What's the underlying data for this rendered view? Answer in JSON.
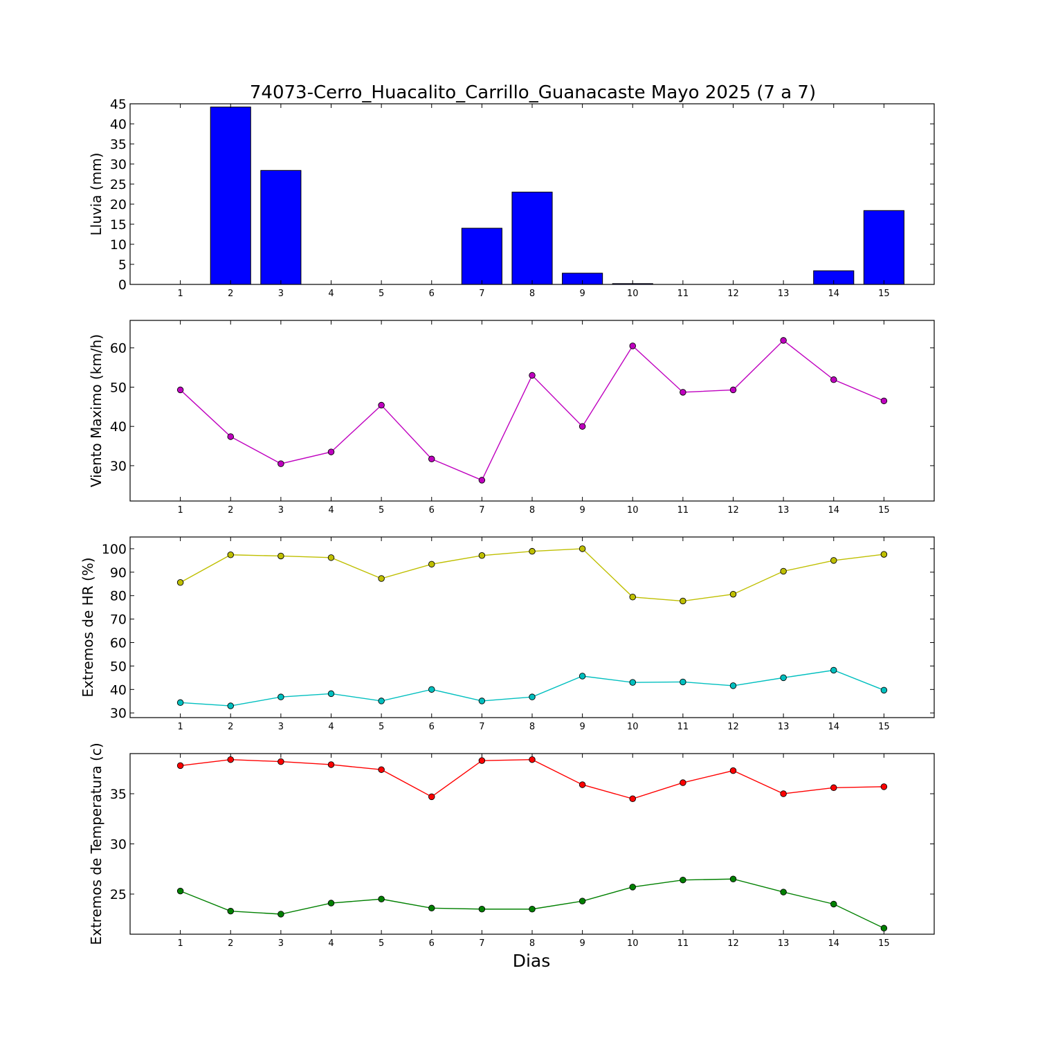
{
  "figure": {
    "title": "74073-Cerro_Huacalito_Carrillo_Guanacaste Mayo 2025  (7 a 7)",
    "xlabel": "Dias"
  },
  "chart_data": [
    {
      "type": "bar",
      "ylabel": "Lluvia (mm)",
      "categories": [
        "1",
        "2",
        "3",
        "4",
        "5",
        "6",
        "7",
        "8",
        "9",
        "10",
        "11",
        "12",
        "13",
        "14",
        "15"
      ],
      "values": [
        0,
        44.2,
        28.4,
        0,
        0,
        0,
        14.0,
        23.0,
        2.8,
        0.2,
        0,
        0,
        0,
        3.4,
        18.4
      ],
      "ylim": [
        0,
        45
      ],
      "yticks": [
        0,
        5,
        10,
        15,
        20,
        25,
        30,
        35,
        40,
        45
      ],
      "color": "#0000ff"
    },
    {
      "type": "line",
      "ylabel": "Viento Maximo (km/h)",
      "categories": [
        "1",
        "2",
        "3",
        "4",
        "5",
        "6",
        "7",
        "8",
        "9",
        "10",
        "11",
        "12",
        "13",
        "14",
        "15"
      ],
      "series": [
        {
          "values": [
            49.3,
            37.4,
            30.5,
            33.5,
            45.4,
            31.7,
            26.3,
            53.0,
            40.0,
            60.5,
            48.7,
            49.3,
            61.9,
            51.9,
            46.5
          ],
          "color": "#bf00bf"
        }
      ],
      "ylim": [
        21,
        67
      ],
      "yticks": [
        30,
        40,
        50,
        60
      ]
    },
    {
      "type": "line",
      "ylabel": "Extremos de HR (%)",
      "categories": [
        "1",
        "2",
        "3",
        "4",
        "5",
        "6",
        "7",
        "8",
        "9",
        "10",
        "11",
        "12",
        "13",
        "14",
        "15"
      ],
      "series": [
        {
          "values": [
            85.6,
            97.4,
            96.9,
            96.2,
            87.3,
            93.4,
            97.1,
            98.9,
            100.0,
            79.4,
            77.7,
            80.6,
            90.4,
            95.0,
            97.6
          ],
          "color": "#bfbf00"
        },
        {
          "values": [
            34.4,
            33.0,
            36.8,
            38.2,
            35.1,
            40.0,
            35.1,
            36.8,
            45.7,
            43.0,
            43.2,
            41.6,
            45.0,
            48.2,
            39.7
          ],
          "color": "#00bfbf"
        }
      ],
      "ylim": [
        28,
        105
      ],
      "yticks": [
        30,
        40,
        50,
        60,
        70,
        80,
        90,
        100
      ]
    },
    {
      "type": "line",
      "ylabel": "Extremos de Temperatura (c)",
      "categories": [
        "1",
        "2",
        "3",
        "4",
        "5",
        "6",
        "7",
        "8",
        "9",
        "10",
        "11",
        "12",
        "13",
        "14",
        "15"
      ],
      "series": [
        {
          "values": [
            37.8,
            38.4,
            38.2,
            37.9,
            37.4,
            34.7,
            38.3,
            38.4,
            35.9,
            34.5,
            36.1,
            37.3,
            35.0,
            35.6,
            35.7
          ],
          "color": "#ff0000"
        },
        {
          "values": [
            25.3,
            23.3,
            23.0,
            24.1,
            24.5,
            23.6,
            23.5,
            23.5,
            24.3,
            25.7,
            26.4,
            26.5,
            25.2,
            24.0,
            21.6
          ],
          "color": "#008000"
        }
      ],
      "ylim": [
        21.0,
        39.0
      ],
      "yticks": [
        25,
        30,
        35
      ]
    }
  ]
}
